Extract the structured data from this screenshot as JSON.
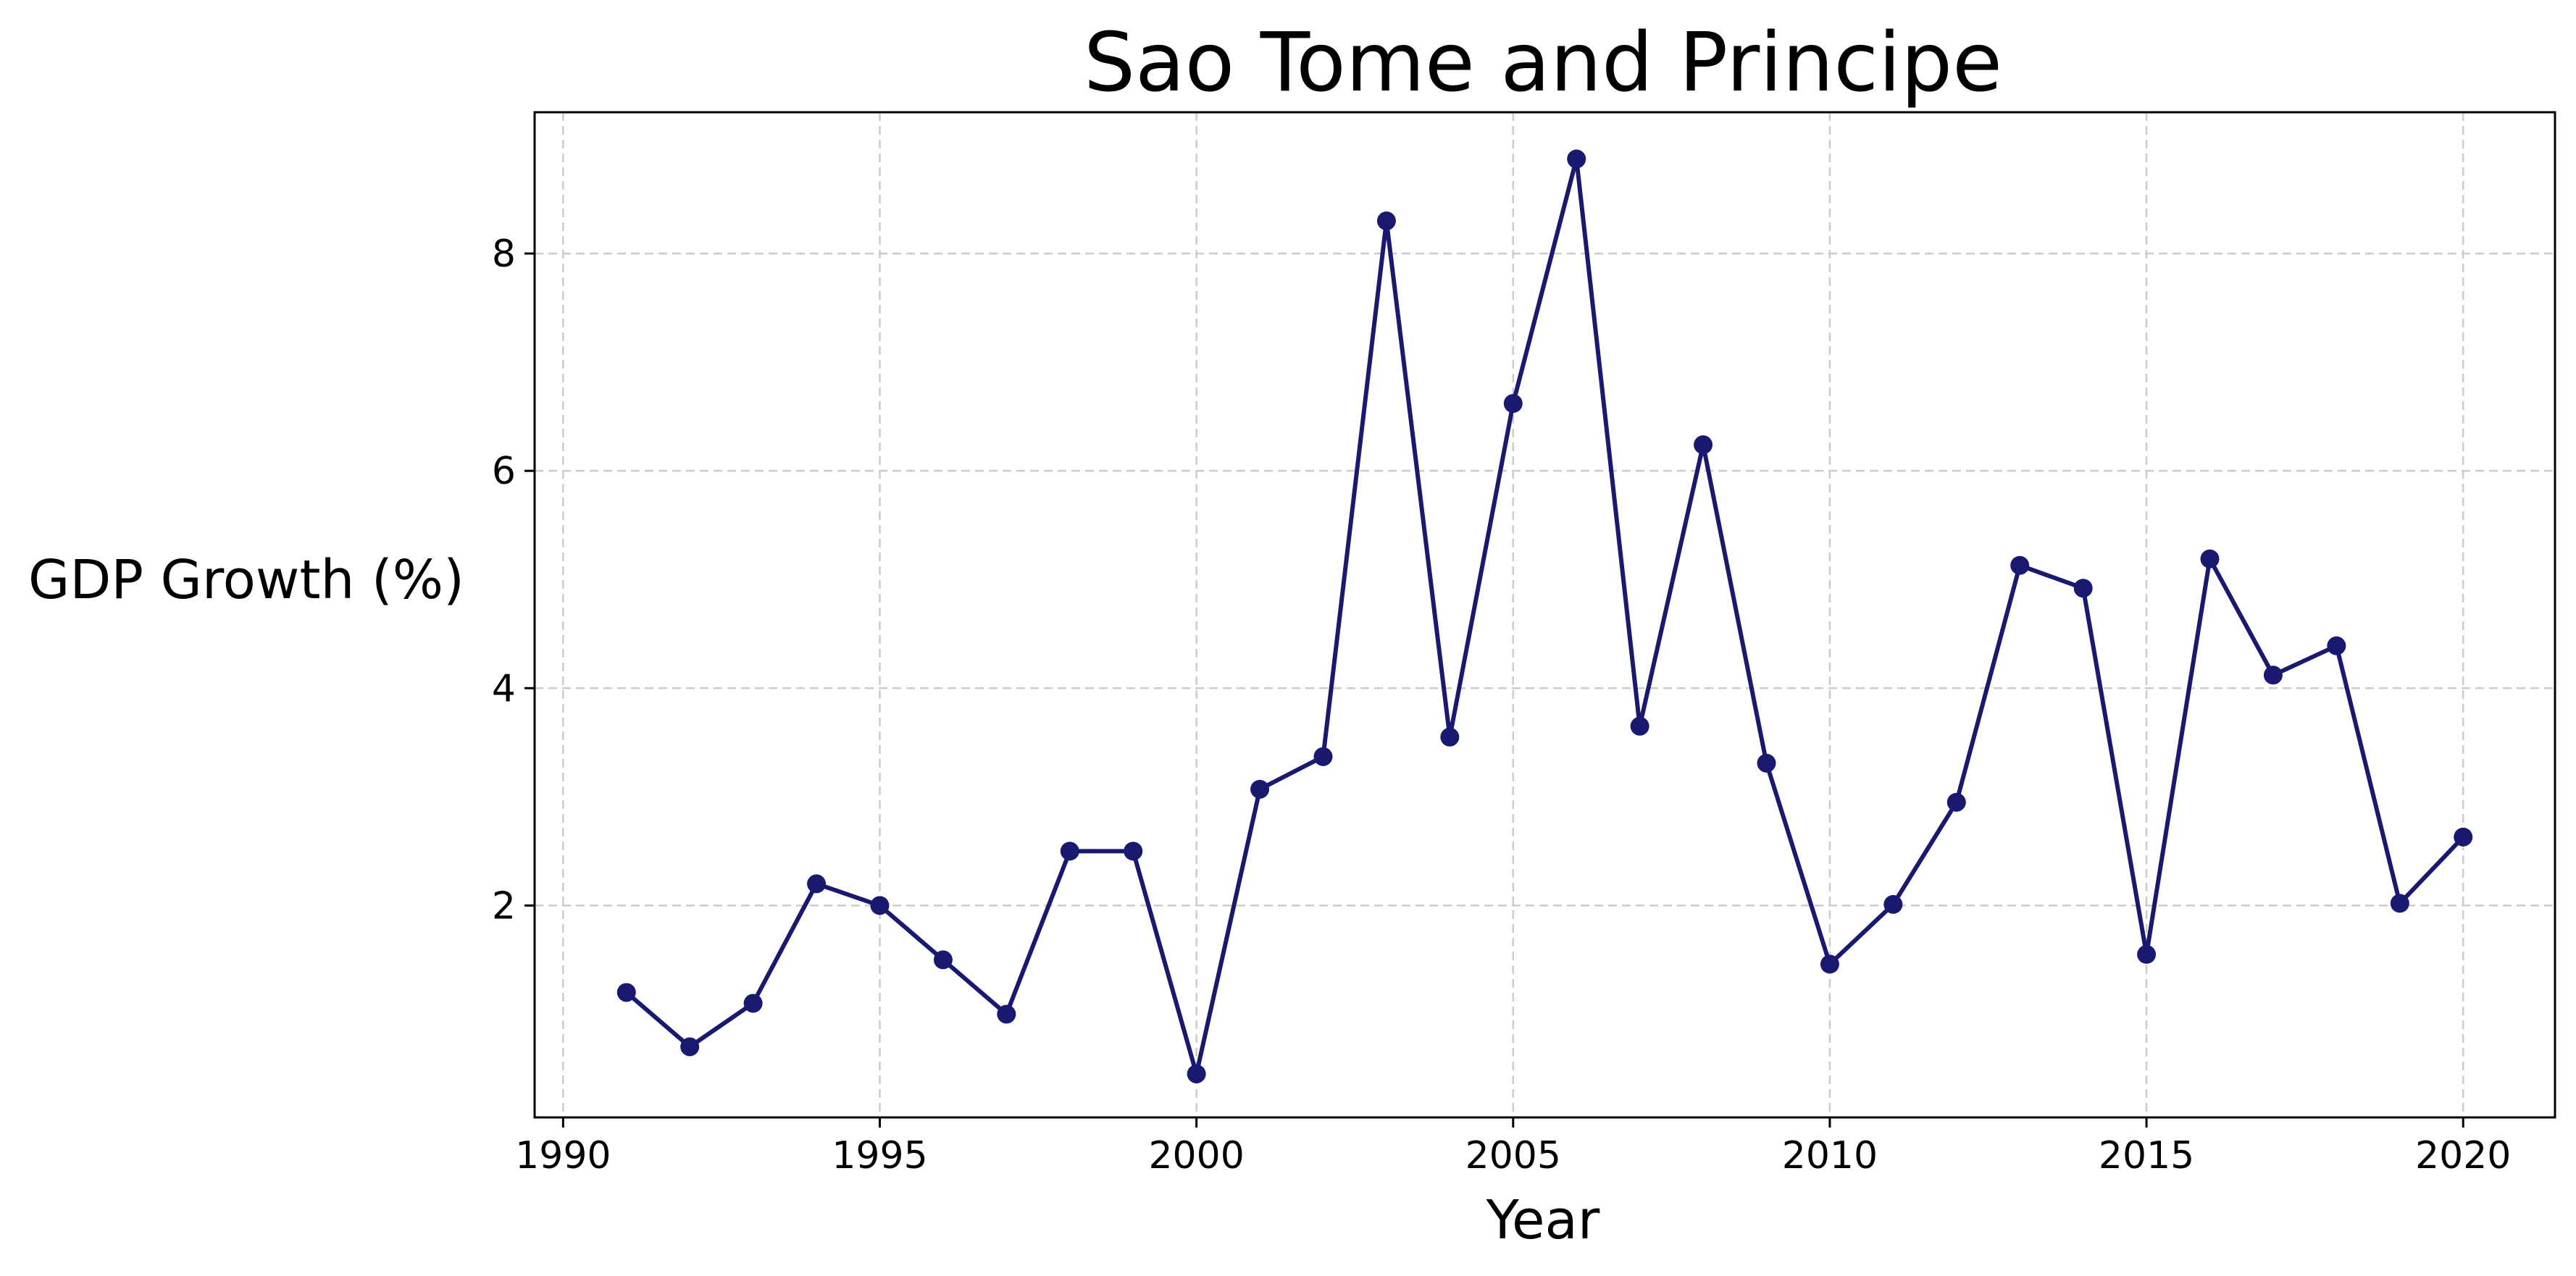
{
  "chart_data": {
    "type": "line",
    "title": "Sao Tome and Principe",
    "xlabel": "Year",
    "ylabel": "GDP Growth (%)",
    "xlim": [
      1989.55,
      2021.45
    ],
    "ylim": [
      0.05,
      9.3
    ],
    "xticks": [
      1990,
      1995,
      2000,
      2005,
      2010,
      2015,
      2020
    ],
    "yticks": [
      2,
      4,
      6,
      8
    ],
    "grid": true,
    "color": "#191970",
    "series": [
      {
        "x": [
          1991,
          1992,
          1993,
          1994,
          1995,
          1996,
          1997,
          1998,
          1999,
          2000,
          2001,
          2002,
          2003,
          2004,
          2005,
          2006,
          2007,
          2008,
          2009,
          2010,
          2011,
          2012,
          2013,
          2014,
          2015,
          2016,
          2017,
          2018,
          2019,
          2020
        ],
        "values": [
          1.2,
          0.7,
          1.1,
          2.2,
          2.0,
          1.5,
          1.0,
          2.5,
          2.5,
          0.45,
          3.07,
          3.37,
          8.3,
          3.55,
          6.62,
          8.87,
          3.65,
          6.24,
          3.31,
          1.46,
          2.01,
          2.95,
          5.13,
          4.92,
          1.55,
          5.19,
          4.12,
          4.39,
          2.02,
          2.63
        ]
      }
    ]
  }
}
